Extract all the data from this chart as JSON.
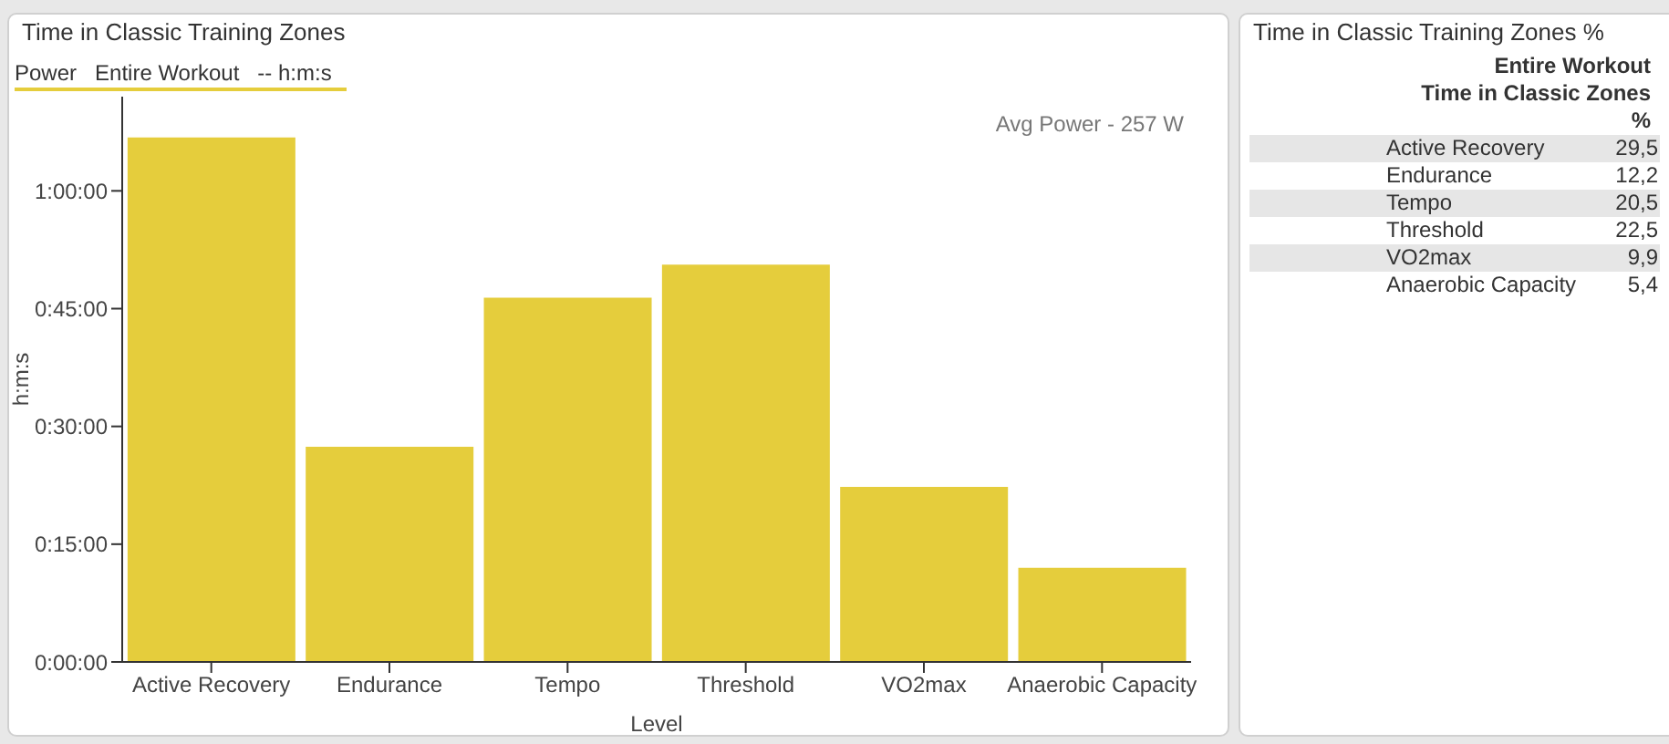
{
  "chart_data": [
    {
      "type": "bar",
      "title": "Time in Classic Training Zones",
      "xlabel": "Level",
      "ylabel": "h:m:s",
      "categories": [
        "Active Recovery",
        "Endurance",
        "Tempo",
        "Threshold",
        "VO2max",
        "Anaerobic Capacity"
      ],
      "series": [
        {
          "name": "Power   Entire Workout   -- h:m:s",
          "color": "#e5cd3c",
          "values": [
            66.8,
            27.4,
            46.4,
            50.6,
            22.3,
            12.0
          ]
        }
      ],
      "ylim": [
        0,
        72
      ],
      "yticks": [
        {
          "value": 0,
          "label": "0:00:00"
        },
        {
          "value": 15,
          "label": "0:15:00"
        },
        {
          "value": 30,
          "label": "0:30:00"
        },
        {
          "value": 45,
          "label": "0:45:00"
        },
        {
          "value": 60,
          "label": "1:00:00"
        }
      ],
      "legend": "top left",
      "grid": false,
      "annotations": [
        "Avg Power - 257 W"
      ]
    },
    {
      "type": "other",
      "title": "Time in Classic Training Zones %",
      "annotations": [
        "Entire Workout",
        "Time in Classic Zones",
        "%"
      ],
      "categories": [
        "Active Recovery",
        "Endurance",
        "Tempo",
        "Threshold",
        "VO2max",
        "Anaerobic Capacity"
      ],
      "value_labels": [
        "29,5",
        "12,2",
        "20,5",
        "22,5",
        "9,9",
        "5,4"
      ]
    }
  ]
}
